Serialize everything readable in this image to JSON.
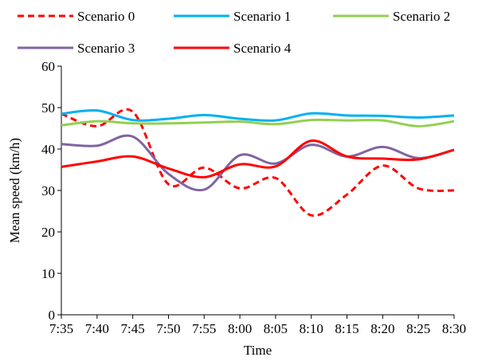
{
  "chart_data": {
    "type": "line",
    "xlabel": "Time",
    "ylabel": "Mean speed (km/h)",
    "ylim": [
      0,
      60
    ],
    "yticks": [
      0,
      10,
      20,
      30,
      40,
      50,
      60
    ],
    "grid": false,
    "legend_position": "top",
    "categories": [
      "7:35",
      "7:40",
      "7:45",
      "7:50",
      "7:55",
      "8:00",
      "8:05",
      "8:10",
      "8:15",
      "8:20",
      "8:25",
      "8:30"
    ],
    "series": [
      {
        "name": "Scenario 0",
        "color": "#ff0000",
        "dashed": true,
        "values": [
          48.5,
          45.5,
          49.0,
          31.5,
          35.5,
          30.5,
          33.0,
          24.0,
          29.0,
          36.0,
          30.5,
          30.0
        ]
      },
      {
        "name": "Scenario 1",
        "color": "#00b0f0",
        "dashed": false,
        "values": [
          48.5,
          49.3,
          47.0,
          47.3,
          48.2,
          47.3,
          46.9,
          48.6,
          48.1,
          48.0,
          47.6,
          48.1
        ]
      },
      {
        "name": "Scenario 2",
        "color": "#92d050",
        "dashed": false,
        "values": [
          45.7,
          46.7,
          46.2,
          46.2,
          46.4,
          46.6,
          46.0,
          47.0,
          46.9,
          46.9,
          45.5,
          46.7
        ]
      },
      {
        "name": "Scenario 3",
        "color": "#8064a2",
        "dashed": false,
        "values": [
          41.2,
          40.8,
          43.0,
          34.0,
          30.2,
          38.5,
          36.5,
          41.0,
          38.2,
          40.5,
          37.8,
          39.8
        ]
      },
      {
        "name": "Scenario 4",
        "color": "#ff0000",
        "dashed": false,
        "values": [
          35.7,
          37.0,
          38.2,
          35.3,
          33.2,
          36.3,
          35.8,
          42.0,
          38.2,
          37.7,
          37.5,
          39.8
        ]
      }
    ]
  }
}
